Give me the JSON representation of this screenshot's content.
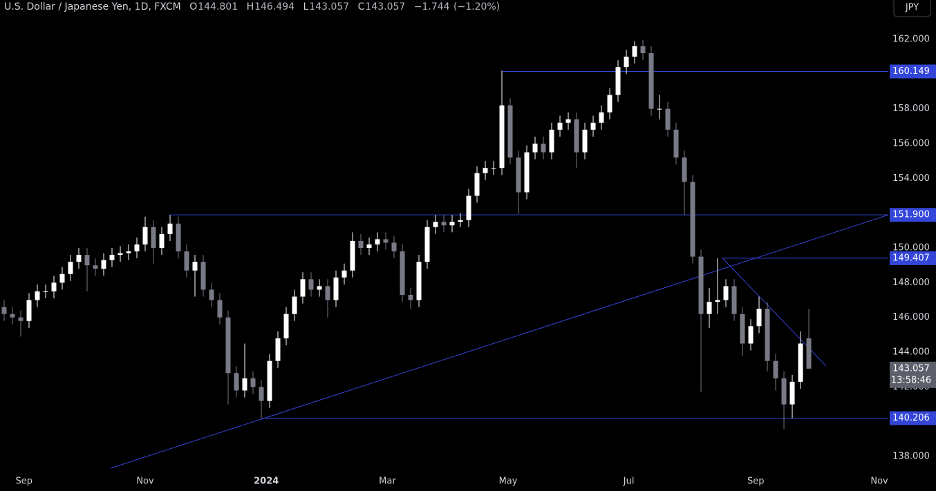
{
  "chart_data": {
    "type": "candlestick",
    "title": "U.S. Dollar / Japanese Yen, 1D, FXCM",
    "ohlc_labels": [
      "O",
      "H",
      "L",
      "C"
    ],
    "change": "−1.744",
    "change_percent": "(−1.20%)",
    "currency": "JPY",
    "countdown": "13:58:46",
    "up_color": "#ffffff",
    "down_color": "#787b86",
    "line_color": "#3346d8",
    "grid": false,
    "categories": [
      null,
      null,
      null,
      null,
      null,
      null,
      null,
      null,
      null,
      null,
      null,
      null,
      null,
      null,
      null,
      null,
      null,
      null,
      null,
      null,
      null,
      null,
      null,
      null,
      null,
      null,
      null,
      null,
      null,
      null,
      null,
      null,
      null,
      null,
      null,
      null,
      null,
      null,
      null,
      null,
      null,
      null,
      null,
      null,
      null,
      null,
      null,
      null,
      null,
      null,
      null,
      null,
      null,
      null,
      null,
      null,
      null,
      null,
      null,
      null,
      null,
      null,
      null,
      null,
      null,
      null,
      null,
      null,
      null,
      null,
      null,
      null,
      null,
      null,
      null,
      null,
      null,
      null,
      null,
      null,
      null,
      null,
      null,
      null,
      null,
      null,
      null,
      null,
      null,
      null,
      null,
      null,
      null,
      null,
      null,
      null,
      null,
      null
    ],
    "open": [
      146.6,
      146.2,
      146.0,
      145.8,
      147.0,
      147.5,
      147.5,
      148.0,
      148.5,
      149.2,
      149.6,
      149.0,
      148.8,
      149.3,
      149.6,
      149.7,
      149.8,
      150.2,
      151.2,
      150.0,
      150.8,
      151.4,
      149.8,
      148.7,
      149.2,
      147.6,
      147.0,
      146.0,
      142.8,
      141.8,
      142.5,
      142.0,
      141.2,
      143.5,
      144.8,
      146.2,
      147.2,
      148.2,
      147.6,
      147.8,
      147.0,
      148.3,
      148.7,
      150.4,
      150.0,
      150.2,
      150.5,
      150.3,
      149.8,
      147.3,
      147.0,
      149.2,
      151.2,
      151.5,
      151.3,
      151.5,
      151.6,
      153.0,
      154.3,
      154.6,
      154.6,
      158.2,
      155.2,
      153.2,
      155.5,
      156.0,
      155.5,
      156.8,
      157.2,
      157.4,
      155.5,
      156.8,
      157.2,
      157.8,
      158.8,
      160.4,
      161.0,
      161.6,
      161.2,
      158.0,
      158.0,
      156.8,
      155.2,
      153.8,
      149.5,
      146.2,
      146.9,
      147.0,
      147.8,
      146.2,
      144.5,
      145.5,
      146.5,
      143.5,
      142.5,
      141.0,
      142.3,
      144.801
    ],
    "high": [
      147.0,
      146.6,
      146.4,
      147.4,
      147.9,
      147.9,
      148.4,
      148.9,
      149.6,
      150.0,
      150.0,
      149.4,
      149.7,
      150.0,
      150.1,
      150.2,
      150.6,
      151.8,
      151.6,
      151.2,
      151.9,
      151.8,
      150.2,
      149.6,
      149.6,
      148.0,
      147.4,
      146.4,
      143.2,
      144.5,
      142.9,
      142.4,
      143.9,
      145.2,
      146.6,
      147.6,
      148.6,
      148.6,
      148.2,
      148.2,
      148.7,
      149.1,
      150.9,
      150.8,
      150.6,
      150.9,
      150.9,
      150.7,
      150.2,
      147.7,
      149.6,
      151.6,
      151.9,
      151.9,
      151.9,
      152.0,
      153.4,
      154.7,
      155.0,
      155.0,
      160.2,
      158.6,
      155.6,
      155.9,
      156.4,
      156.4,
      157.2,
      157.6,
      157.8,
      157.8,
      157.2,
      157.6,
      158.2,
      159.2,
      160.8,
      161.4,
      161.9,
      161.95,
      161.6,
      158.8,
      158.4,
      157.2,
      155.6,
      154.2,
      149.9,
      147.7,
      149.41,
      148.2,
      148.2,
      146.6,
      145.9,
      147.2,
      146.9,
      143.9,
      142.9,
      142.7,
      145.2,
      146.494
    ],
    "low": [
      145.8,
      145.6,
      144.9,
      145.4,
      146.6,
      147.1,
      147.1,
      147.6,
      148.1,
      148.8,
      147.5,
      148.4,
      148.4,
      148.9,
      149.2,
      149.3,
      149.4,
      149.8,
      149.1,
      149.6,
      150.4,
      149.4,
      148.3,
      147.2,
      147.2,
      146.6,
      145.6,
      141.0,
      141.4,
      141.4,
      141.6,
      140.2,
      140.8,
      143.1,
      144.4,
      145.8,
      146.8,
      147.2,
      147.2,
      146.0,
      146.6,
      147.9,
      148.3,
      149.6,
      149.6,
      149.8,
      149.9,
      149.4,
      146.9,
      146.5,
      146.6,
      148.8,
      150.8,
      150.9,
      150.9,
      151.2,
      151.2,
      152.6,
      153.9,
      154.2,
      154.2,
      154.8,
      151.95,
      152.8,
      155.1,
      155.1,
      155.1,
      156.4,
      156.8,
      154.6,
      155.1,
      156.4,
      156.8,
      157.4,
      158.4,
      160.0,
      160.6,
      160.8,
      157.6,
      157.4,
      156.4,
      154.8,
      151.9,
      149.1,
      141.7,
      145.4,
      146.2,
      146.6,
      145.8,
      143.8,
      144.1,
      145.1,
      142.9,
      141.8,
      139.6,
      140.2,
      141.9,
      143.057
    ],
    "close": [
      146.2,
      146.0,
      145.8,
      147.0,
      147.5,
      147.5,
      148.0,
      148.5,
      149.2,
      149.6,
      149.0,
      148.8,
      149.3,
      149.6,
      149.7,
      149.8,
      150.2,
      151.2,
      150.0,
      150.8,
      151.4,
      149.8,
      148.7,
      149.2,
      147.6,
      147.0,
      146.0,
      142.8,
      141.8,
      142.5,
      142.0,
      141.2,
      143.5,
      144.8,
      146.2,
      147.2,
      148.2,
      147.6,
      147.8,
      147.0,
      148.3,
      148.7,
      150.4,
      150.0,
      150.2,
      150.5,
      150.3,
      149.8,
      147.3,
      147.0,
      149.2,
      151.2,
      151.5,
      151.3,
      151.5,
      151.6,
      153.0,
      154.3,
      154.6,
      154.6,
      158.2,
      155.2,
      153.2,
      155.5,
      156.0,
      155.5,
      156.8,
      157.2,
      157.4,
      155.5,
      156.8,
      157.2,
      157.8,
      158.8,
      160.4,
      161.0,
      161.6,
      161.2,
      158.0,
      158.0,
      156.8,
      155.2,
      153.8,
      149.5,
      146.2,
      146.9,
      147.0,
      147.8,
      146.2,
      144.5,
      145.5,
      146.5,
      143.5,
      142.5,
      141.0,
      142.3,
      144.5,
      143.057
    ],
    "xlim": [
      -0.5,
      106.58
    ],
    "xticks": [
      {
        "value": 2.4,
        "label": "Sep"
      },
      {
        "value": 17,
        "label": "Nov"
      },
      {
        "value": 31.6,
        "label": "2024"
      },
      {
        "value": 46.2,
        "label": "Mar"
      },
      {
        "value": 60.75,
        "label": "May"
      },
      {
        "value": 75.3,
        "label": "Jul"
      },
      {
        "value": 90.6,
        "label": "Sep"
      },
      {
        "value": 105.5,
        "label": "Nov"
      }
    ],
    "ylim": [
      137.25,
      164.26
    ],
    "yticks": [
      {
        "value": 138,
        "label": "138.000"
      },
      {
        "value": 140,
        "label": "140.000"
      },
      {
        "value": 142,
        "label": "142.000"
      },
      {
        "value": 144,
        "label": "144.000"
      },
      {
        "value": 146,
        "label": "146.000"
      },
      {
        "value": 148,
        "label": "148.000"
      },
      {
        "value": 150,
        "label": "150.000"
      },
      {
        "value": 152,
        "label": "152.000"
      },
      {
        "value": 154,
        "label": "154.000"
      },
      {
        "value": 156,
        "label": "156.000"
      },
      {
        "value": 158,
        "label": "158.000"
      },
      {
        "value": 160,
        "label": "160.000"
      },
      {
        "value": 162,
        "label": "162.000"
      }
    ],
    "levels": [
      {
        "start": 60.1,
        "price": 160.149
      },
      {
        "start": 19.9,
        "price": {
          "value": 151.9,
          "label": "151.900"
        }
      },
      {
        "start": 86.6,
        "price": 149.407
      },
      {
        "start": 31,
        "price": 140.206
      }
    ],
    "trendlines": [
      {
        "points": [
          [
            12.83,
            137.33
          ],
          [
            106.58,
            151.9
          ]
        ]
      },
      {
        "points": [
          [
            86.6,
            149.407
          ],
          [
            99.1,
            143.2
          ]
        ]
      }
    ]
  }
}
